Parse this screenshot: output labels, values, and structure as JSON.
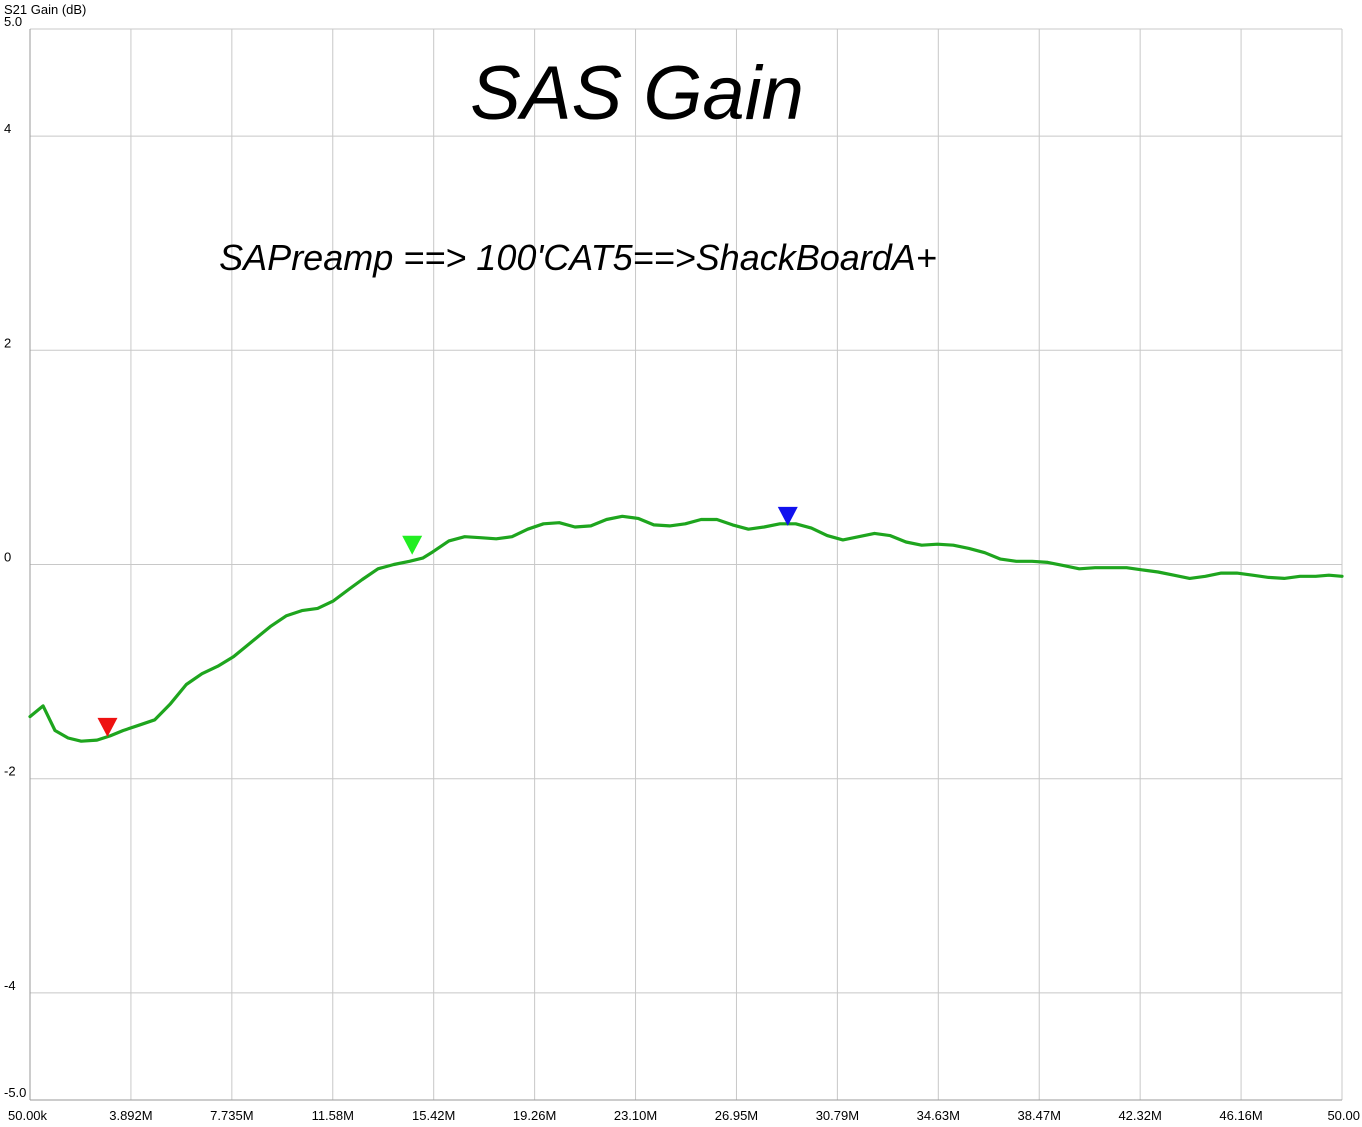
{
  "chart_data": {
    "type": "line",
    "title": "SAS Gain",
    "subtitle": "SAPreamp ==> 100'CAT5==>ShackBoardA+",
    "ylabel": "S21 Gain (dB)",
    "xlabel": "",
    "xlim_mhz": [
      0.05,
      50.0
    ],
    "ylim": [
      -5.0,
      5.0
    ],
    "grid": true,
    "x_tick_labels": [
      "50.00k",
      "3.892M",
      "7.735M",
      "11.58M",
      "15.42M",
      "19.26M",
      "23.10M",
      "26.95M",
      "30.79M",
      "34.63M",
      "38.47M",
      "42.32M",
      "46.16M",
      "50.00"
    ],
    "y_ticks": [
      {
        "value": 5,
        "label": "5.0"
      },
      {
        "value": 4,
        "label": "4"
      },
      {
        "value": 2,
        "label": "2"
      },
      {
        "value": 0,
        "label": "0"
      },
      {
        "value": -2,
        "label": "-2"
      },
      {
        "value": -4,
        "label": "-4"
      },
      {
        "value": -5,
        "label": "-5.0"
      }
    ],
    "series": [
      {
        "color": "#1ea51e",
        "x": [
          0.05,
          0.55,
          1.0,
          1.5,
          2.0,
          2.6,
          3.1,
          3.6,
          4.2,
          4.8,
          5.4,
          6.0,
          6.6,
          7.2,
          7.8,
          8.5,
          9.2,
          9.8,
          10.4,
          11.0,
          11.6,
          12.2,
          12.7,
          13.3,
          13.9,
          14.5,
          15.0,
          15.4,
          16.0,
          16.6,
          17.2,
          17.8,
          18.4,
          19.0,
          19.6,
          20.2,
          20.8,
          21.4,
          22.0,
          22.6,
          23.2,
          23.8,
          24.4,
          25.0,
          25.6,
          26.2,
          26.8,
          27.4,
          28.0,
          28.6,
          29.2,
          29.8,
          30.4,
          31.0,
          31.6,
          32.2,
          32.8,
          33.4,
          34.0,
          34.6,
          35.2,
          35.8,
          36.4,
          37.0,
          37.6,
          38.2,
          38.8,
          39.4,
          40.0,
          40.6,
          41.2,
          41.8,
          42.4,
          43.0,
          43.6,
          44.2,
          44.8,
          45.4,
          46.0,
          46.6,
          47.2,
          47.8,
          48.4,
          49.0,
          49.5,
          50.0
        ],
        "y": [
          -1.42,
          -1.32,
          -1.55,
          -1.62,
          -1.65,
          -1.64,
          -1.6,
          -1.55,
          -1.5,
          -1.45,
          -1.3,
          -1.12,
          -1.02,
          -0.95,
          -0.86,
          -0.72,
          -0.58,
          -0.48,
          -0.43,
          -0.41,
          -0.34,
          -0.23,
          -0.14,
          -0.04,
          0.0,
          0.03,
          0.06,
          0.12,
          0.22,
          0.26,
          0.25,
          0.24,
          0.26,
          0.33,
          0.38,
          0.39,
          0.35,
          0.36,
          0.42,
          0.45,
          0.43,
          0.37,
          0.36,
          0.38,
          0.42,
          0.42,
          0.37,
          0.33,
          0.35,
          0.38,
          0.38,
          0.34,
          0.27,
          0.23,
          0.26,
          0.29,
          0.27,
          0.21,
          0.18,
          0.19,
          0.18,
          0.15,
          0.11,
          0.05,
          0.03,
          0.03,
          0.02,
          -0.01,
          -0.04,
          -0.03,
          -0.03,
          -0.03,
          -0.05,
          -0.07,
          -0.1,
          -0.13,
          -0.11,
          -0.08,
          -0.08,
          -0.1,
          -0.12,
          -0.13,
          -0.11,
          -0.11,
          -0.1,
          -0.11
        ]
      }
    ],
    "markers": [
      {
        "x": 3.0,
        "y": -1.6,
        "color": "#ee1111"
      },
      {
        "x": 14.6,
        "y": 0.1,
        "color": "#22ee22"
      },
      {
        "x": 28.9,
        "y": 0.37,
        "color": "#1111ee"
      }
    ]
  }
}
